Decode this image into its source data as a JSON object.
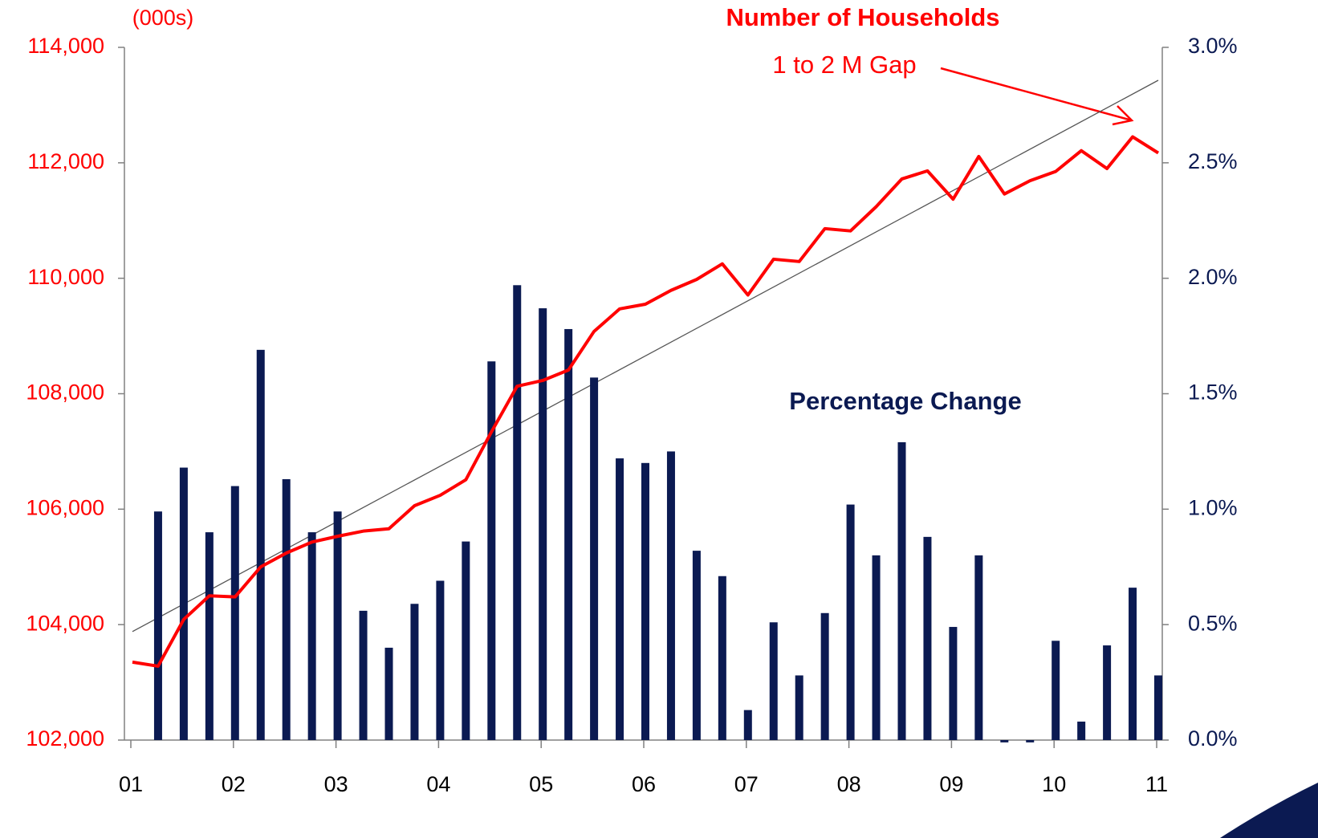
{
  "chart_data": {
    "type": "bar_line",
    "categories": [
      "01",
      null,
      null,
      null,
      "02",
      null,
      null,
      null,
      "03",
      null,
      null,
      null,
      "04",
      null,
      null,
      null,
      "05",
      null,
      null,
      null,
      "06",
      null,
      null,
      null,
      "07",
      null,
      null,
      null,
      "08",
      null,
      null,
      null,
      "09",
      null,
      null,
      null,
      "10",
      null,
      null,
      null,
      "11"
    ],
    "series": [
      {
        "name": "Number of Households",
        "color": "#ff0000",
        "type": "line",
        "axis": "y",
        "values": [
          103350,
          103280,
          104090,
          104500,
          104480,
          105000,
          105240,
          105430,
          105530,
          105620,
          105660,
          106060,
          106240,
          106510,
          107340,
          108130,
          108230,
          108410,
          109080,
          109470,
          109550,
          109790,
          109980,
          110250,
          109710,
          110330,
          110290,
          110860,
          110820,
          111240,
          111720,
          111860,
          111370,
          112110,
          111460,
          111690,
          111850,
          112210,
          111900,
          112450,
          112170
        ]
      },
      {
        "name": "Percentage Change",
        "color": "#0b1a52",
        "type": "bar",
        "axis": "y2",
        "values": [
          null,
          0.99,
          1.18,
          0.9,
          1.1,
          1.69,
          1.13,
          0.9,
          0.99,
          0.56,
          0.4,
          0.59,
          0.69,
          0.86,
          1.64,
          1.97,
          1.87,
          1.78,
          1.57,
          1.22,
          1.2,
          1.25,
          0.82,
          0.71,
          0.13,
          0.51,
          0.28,
          0.55,
          1.02,
          0.8,
          1.29,
          0.88,
          0.49,
          0.8,
          -0.01,
          -0.01,
          0.43,
          0.08,
          0.41,
          0.66,
          0.28
        ]
      }
    ],
    "trendline": {
      "x": [
        0,
        40
      ],
      "values": [
        103880,
        113430
      ],
      "color": "#555555"
    },
    "annotations": [
      "(000s)",
      "1 to 2 M Gap"
    ],
    "ylim": [
      102000,
      114000
    ],
    "yticks": [
      {
        "value": 102000,
        "label": "102,000"
      },
      {
        "value": 104000,
        "label": "104,000"
      },
      {
        "value": 106000,
        "label": "106,000"
      },
      {
        "value": 108000,
        "label": "108,000"
      },
      {
        "value": 110000,
        "label": "110,000"
      },
      {
        "value": 112000,
        "label": "112,000"
      },
      {
        "value": 114000,
        "label": "114,000"
      }
    ],
    "y2lim": [
      0,
      3
    ],
    "y2ticks": [
      {
        "value": 0,
        "label": "0.0%"
      },
      {
        "value": 0.5,
        "label": "0.5%"
      },
      {
        "value": 1,
        "label": "1.0%"
      },
      {
        "value": 1.5,
        "label": "1.5%"
      },
      {
        "value": 2,
        "label": "2.0%"
      },
      {
        "value": 2.5,
        "label": "2.5%"
      },
      {
        "value": 3,
        "label": "3.0%"
      }
    ],
    "ytick_color": "#ff0000",
    "y2tick_color": "#0b1a52"
  }
}
